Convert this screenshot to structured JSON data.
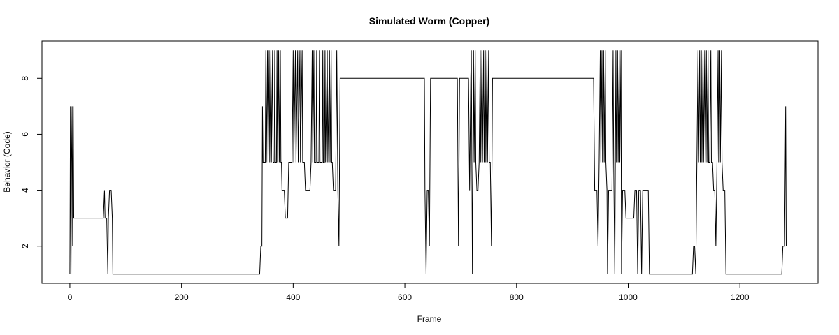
{
  "chart_data": {
    "type": "line",
    "title": "Simulated Worm (Copper)",
    "xlabel": "Frame",
    "ylabel": "Behavior (Code)",
    "xlim": [
      -50,
      1340
    ],
    "ylim": [
      0.67,
      9.33
    ],
    "x_ticks": [
      0,
      200,
      400,
      600,
      800,
      1000,
      1200
    ],
    "y_ticks": [
      2,
      4,
      6,
      8
    ],
    "grid": false,
    "series": [
      {
        "color": "#000000",
        "points": [
          [
            0,
            1
          ],
          [
            1,
            7
          ],
          [
            2,
            1
          ],
          [
            3,
            5
          ],
          [
            4,
            7
          ],
          [
            5,
            2
          ],
          [
            6,
            7
          ],
          [
            7,
            3
          ],
          [
            20,
            3
          ],
          [
            40,
            3
          ],
          [
            60,
            3
          ],
          [
            62,
            4
          ],
          [
            63,
            3
          ],
          [
            66,
            3
          ],
          [
            68,
            1
          ],
          [
            69,
            3
          ],
          [
            71,
            4
          ],
          [
            74,
            4
          ],
          [
            76,
            3
          ],
          [
            77,
            1
          ],
          [
            150,
            1
          ],
          [
            250,
            1
          ],
          [
            340,
            1
          ],
          [
            342,
            2
          ],
          [
            344,
            2
          ],
          [
            345,
            7
          ],
          [
            346,
            5
          ],
          [
            350,
            5
          ],
          [
            351,
            9
          ],
          [
            352,
            5
          ],
          [
            354,
            9
          ],
          [
            355,
            5
          ],
          [
            357,
            9
          ],
          [
            358,
            5
          ],
          [
            360,
            9
          ],
          [
            361,
            5
          ],
          [
            363,
            9
          ],
          [
            364,
            5
          ],
          [
            366,
            5
          ],
          [
            367,
            9
          ],
          [
            368,
            5
          ],
          [
            370,
            5
          ],
          [
            371,
            9
          ],
          [
            372,
            5
          ],
          [
            374,
            9
          ],
          [
            375,
            5
          ],
          [
            377,
            9
          ],
          [
            378,
            5
          ],
          [
            379,
            5
          ],
          [
            380,
            4
          ],
          [
            384,
            4
          ],
          [
            386,
            3
          ],
          [
            390,
            3
          ],
          [
            392,
            5
          ],
          [
            398,
            5
          ],
          [
            400,
            9
          ],
          [
            401,
            5
          ],
          [
            404,
            9
          ],
          [
            405,
            5
          ],
          [
            408,
            9
          ],
          [
            409,
            5
          ],
          [
            412,
            9
          ],
          [
            413,
            5
          ],
          [
            416,
            9
          ],
          [
            417,
            5
          ],
          [
            420,
            5
          ],
          [
            422,
            4
          ],
          [
            430,
            4
          ],
          [
            432,
            5
          ],
          [
            434,
            9
          ],
          [
            435,
            5
          ],
          [
            437,
            9
          ],
          [
            438,
            5
          ],
          [
            441,
            5
          ],
          [
            442,
            9
          ],
          [
            443,
            5
          ],
          [
            446,
            5
          ],
          [
            447,
            9
          ],
          [
            448,
            5
          ],
          [
            452,
            5
          ],
          [
            453,
            9
          ],
          [
            454,
            5
          ],
          [
            456,
            5
          ],
          [
            457,
            9
          ],
          [
            458,
            5
          ],
          [
            461,
            9
          ],
          [
            462,
            5
          ],
          [
            465,
            9
          ],
          [
            466,
            5
          ],
          [
            468,
            9
          ],
          [
            469,
            5
          ],
          [
            470,
            5
          ],
          [
            472,
            4
          ],
          [
            476,
            4
          ],
          [
            478,
            9
          ],
          [
            480,
            4
          ],
          [
            482,
            2
          ],
          [
            484,
            8
          ],
          [
            550,
            8
          ],
          [
            635,
            8
          ],
          [
            636,
            4
          ],
          [
            638,
            1
          ],
          [
            640,
            4
          ],
          [
            642,
            4
          ],
          [
            644,
            2
          ],
          [
            646,
            8
          ],
          [
            690,
            8
          ],
          [
            694,
            8
          ],
          [
            696,
            2
          ],
          [
            698,
            8
          ],
          [
            710,
            8
          ],
          [
            714,
            8
          ],
          [
            716,
            4
          ],
          [
            718,
            8
          ],
          [
            719,
            9
          ],
          [
            721,
            1
          ],
          [
            723,
            9
          ],
          [
            724,
            5
          ],
          [
            726,
            9
          ],
          [
            727,
            5
          ],
          [
            729,
            4
          ],
          [
            731,
            4
          ],
          [
            733,
            5
          ],
          [
            735,
            9
          ],
          [
            736,
            5
          ],
          [
            738,
            9
          ],
          [
            739,
            5
          ],
          [
            741,
            9
          ],
          [
            742,
            5
          ],
          [
            744,
            9
          ],
          [
            745,
            5
          ],
          [
            747,
            9
          ],
          [
            748,
            5
          ],
          [
            750,
            9
          ],
          [
            751,
            5
          ],
          [
            753,
            5
          ],
          [
            755,
            2
          ],
          [
            757,
            8
          ],
          [
            850,
            8
          ],
          [
            938,
            8
          ],
          [
            940,
            4
          ],
          [
            944,
            4
          ],
          [
            946,
            2
          ],
          [
            948,
            5
          ],
          [
            950,
            9
          ],
          [
            951,
            5
          ],
          [
            953,
            9
          ],
          [
            954,
            5
          ],
          [
            956,
            9
          ],
          [
            957,
            5
          ],
          [
            959,
            9
          ],
          [
            960,
            5
          ],
          [
            962,
            4
          ],
          [
            963,
            1
          ],
          [
            965,
            4
          ],
          [
            971,
            4
          ],
          [
            973,
            9
          ],
          [
            974,
            5
          ],
          [
            976,
            1
          ],
          [
            978,
            9
          ],
          [
            979,
            5
          ],
          [
            981,
            9
          ],
          [
            982,
            5
          ],
          [
            984,
            9
          ],
          [
            985,
            5
          ],
          [
            987,
            9
          ],
          [
            988,
            1
          ],
          [
            990,
            4
          ],
          [
            994,
            4
          ],
          [
            996,
            3
          ],
          [
            1010,
            3
          ],
          [
            1012,
            4
          ],
          [
            1015,
            4
          ],
          [
            1017,
            1
          ],
          [
            1019,
            4
          ],
          [
            1022,
            4
          ],
          [
            1024,
            1
          ],
          [
            1026,
            4
          ],
          [
            1030,
            4
          ],
          [
            1036,
            4
          ],
          [
            1038,
            1
          ],
          [
            1080,
            1
          ],
          [
            1115,
            1
          ],
          [
            1117,
            2
          ],
          [
            1119,
            2
          ],
          [
            1121,
            1
          ],
          [
            1123,
            5
          ],
          [
            1125,
            9
          ],
          [
            1126,
            5
          ],
          [
            1128,
            9
          ],
          [
            1129,
            5
          ],
          [
            1131,
            9
          ],
          [
            1132,
            5
          ],
          [
            1134,
            9
          ],
          [
            1135,
            5
          ],
          [
            1137,
            9
          ],
          [
            1138,
            5
          ],
          [
            1140,
            9
          ],
          [
            1141,
            5
          ],
          [
            1143,
            9
          ],
          [
            1144,
            5
          ],
          [
            1146,
            5
          ],
          [
            1148,
            9
          ],
          [
            1149,
            5
          ],
          [
            1151,
            5
          ],
          [
            1153,
            4
          ],
          [
            1155,
            4
          ],
          [
            1157,
            2
          ],
          [
            1159,
            5
          ],
          [
            1161,
            9
          ],
          [
            1162,
            5
          ],
          [
            1164,
            9
          ],
          [
            1165,
            5
          ],
          [
            1167,
            9
          ],
          [
            1168,
            5
          ],
          [
            1170,
            4
          ],
          [
            1173,
            4
          ],
          [
            1175,
            1
          ],
          [
            1220,
            1
          ],
          [
            1265,
            1
          ],
          [
            1275,
            1
          ],
          [
            1277,
            2
          ],
          [
            1280,
            2
          ],
          [
            1282,
            7
          ],
          [
            1283,
            2
          ]
        ]
      }
    ]
  }
}
